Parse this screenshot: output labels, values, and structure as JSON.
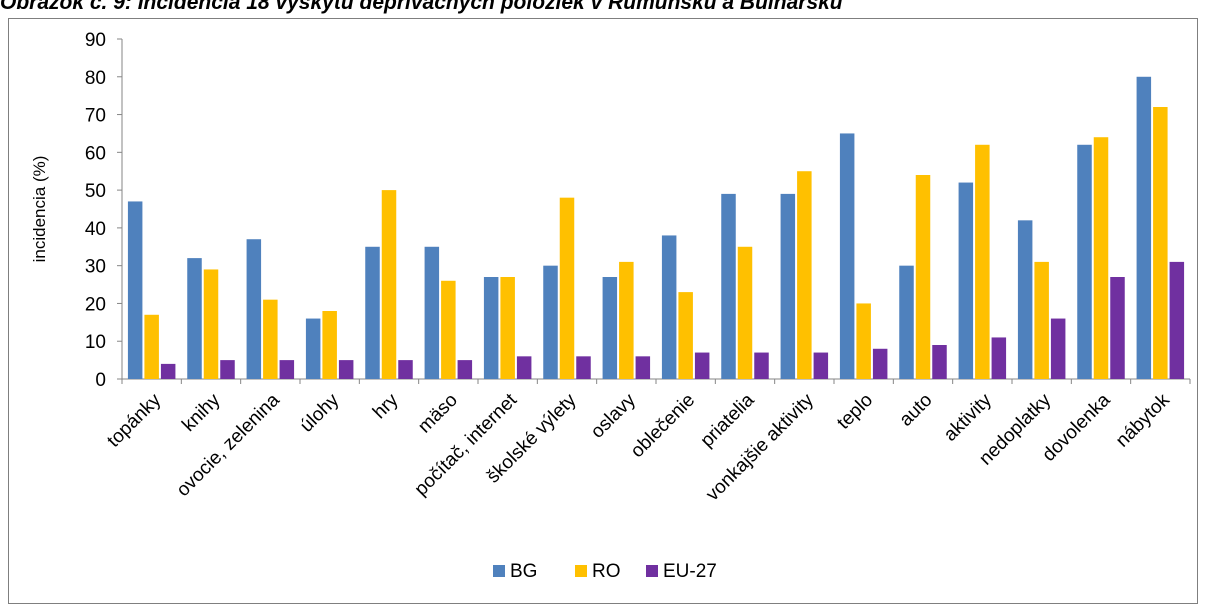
{
  "title": "Obrázok č. 9: Incidencia 18 výskytu deprivačných položiek v Rumunsku a Bulharsku",
  "chart_data": {
    "type": "bar",
    "ylabel": "incidencia (%)",
    "xlabel": "",
    "ylim": [
      0,
      90
    ],
    "yticks": [
      0,
      10,
      20,
      30,
      40,
      50,
      60,
      70,
      80,
      90
    ],
    "grid": false,
    "legend_position": "bottom",
    "categories": [
      "topánky",
      "knihy",
      "ovocie, zelenina",
      "úlohy",
      "hry",
      "mäso",
      "počítač, internet",
      "školské výlety",
      "oslavy",
      "oblečenie",
      "priatelia",
      "vonkajšie aktivity",
      "teplo",
      "auto",
      "aktivity",
      "nedoplatky",
      "dovolenka",
      "nábytok"
    ],
    "series": [
      {
        "name": "BG",
        "color": "#4f81bd",
        "values": [
          47,
          32,
          37,
          16,
          35,
          35,
          27,
          30,
          27,
          38,
          49,
          49,
          65,
          30,
          52,
          42,
          62,
          80
        ]
      },
      {
        "name": "RO",
        "color": "#ffc000",
        "values": [
          17,
          29,
          21,
          18,
          50,
          26,
          27,
          48,
          31,
          23,
          35,
          55,
          20,
          54,
          62,
          31,
          64,
          72
        ]
      },
      {
        "name": "EU-27",
        "color": "#7030a0",
        "values": [
          4,
          5,
          5,
          5,
          5,
          5,
          6,
          6,
          6,
          7,
          7,
          7,
          8,
          9,
          11,
          16,
          27,
          31
        ]
      }
    ]
  }
}
